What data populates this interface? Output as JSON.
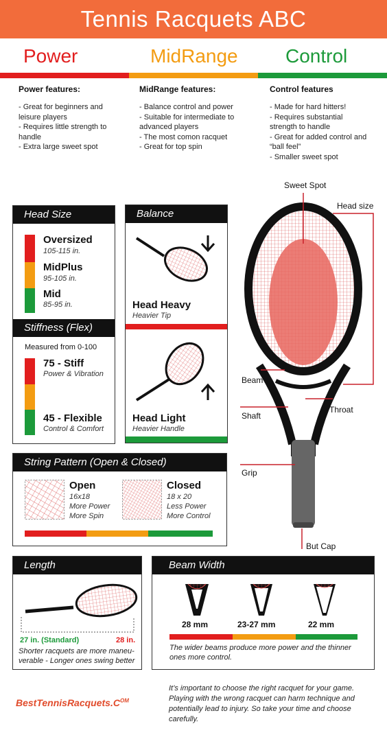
{
  "header": {
    "title": "Tennis Racquets ABC"
  },
  "categories": [
    {
      "name": "Power",
      "color": "#e21e1e"
    },
    {
      "name": "MidRange",
      "color": "#f39c12"
    },
    {
      "name": "Control",
      "color": "#1c9a3a"
    }
  ],
  "features": {
    "power": {
      "title": "Power features:",
      "items": [
        "- Great for beginners and leisure players",
        "- Requires little strength to handle",
        "- Extra large sweet spot"
      ]
    },
    "midrange": {
      "title": "MidRange features:",
      "items": [
        "- Balance control and power",
        "- Suitable for intermediate to advanced players",
        "- The most comon racquet",
        "- Great for top spin"
      ]
    },
    "control": {
      "title": "Control features",
      "items": [
        "- Made for hard hitters!",
        "- Requires substantial strength to handle",
        "- Great for added control and “ball feel”",
        "- Smaller sweet spot"
      ]
    }
  },
  "head_size": {
    "title": "Head Size",
    "items": [
      {
        "name": "Oversized",
        "range": "105-115 in."
      },
      {
        "name": "MidPlus",
        "range": "95-105 in."
      },
      {
        "name": "Mid",
        "range": "85-95 in."
      }
    ]
  },
  "stiffness": {
    "title": "Stiffness (Flex)",
    "measure": "Measured from 0-100",
    "stiff": {
      "name": "75 - Stiff",
      "desc": "Power & Vibration"
    },
    "flexible": {
      "name": "45 - Flexible",
      "desc": "Control & Comfort"
    }
  },
  "balance": {
    "title": "Balance",
    "heavy": {
      "name": "Head Heavy",
      "desc": "Heavier Tip"
    },
    "light": {
      "name": "Head Light",
      "desc": "Heavier Handle"
    }
  },
  "string_pattern": {
    "title": "String Pattern (Open & Closed)",
    "open": {
      "name": "Open",
      "lines": [
        "16x18",
        "More Power",
        "More Spin"
      ]
    },
    "closed": {
      "name": "Closed",
      "lines": [
        "18 x 20",
        "Less Power",
        "More Control"
      ]
    }
  },
  "diagram": {
    "labels": {
      "sweet_spot": "Sweet Spot",
      "head_size": "Head size",
      "beam": "Beam",
      "shaft": "Shaft",
      "throat": "Throat",
      "grip": "Grip",
      "butt_cap": "But Cap"
    }
  },
  "length": {
    "title": "Length",
    "standard": "27 in.  (Standard)",
    "long": "28 in.",
    "note": "Shorter racquets are more maneu- verable - Longer ones swing better"
  },
  "beam_width": {
    "title": "Beam Width",
    "items": [
      "28 mm",
      "23-27 mm",
      "22 mm"
    ],
    "note": "The wider beams produce more power and the thinner ones more control."
  },
  "footer": {
    "brand": "BestTennisRacquets.C",
    "brand_sup": "OM",
    "note": "It’s important to choose the right racquet for your game. Playing with the wrong racquet can harm technique and potentially lead to injury.  So take your time and choose carefully."
  },
  "colors": {
    "header": "#f26c3b",
    "red": "#e21e1e",
    "orange": "#f39c12",
    "green": "#1c9a3a",
    "sweet": "#e8665e",
    "string": "#d84a4a"
  }
}
